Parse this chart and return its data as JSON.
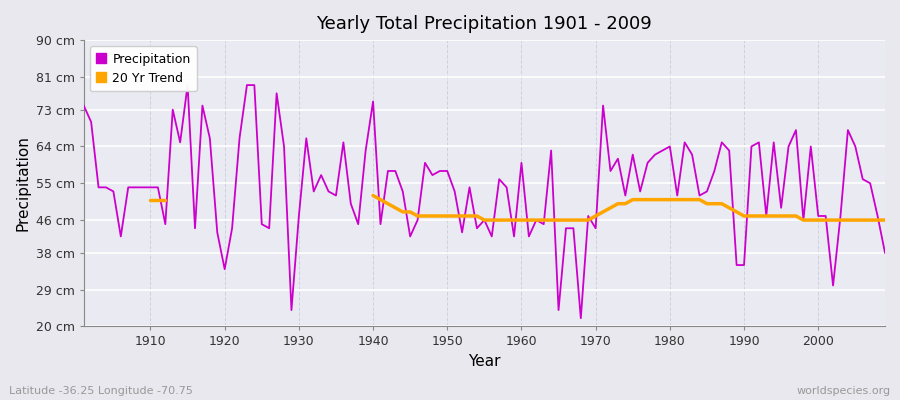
{
  "title": "Yearly Total Precipitation 1901 - 2009",
  "xlabel": "Year",
  "ylabel": "Precipitation",
  "lat_lon_label": "Latitude -36.25 Longitude -70.75",
  "source_label": "worldspecies.org",
  "precip_color": "#cc00cc",
  "trend_color": "#ffa500",
  "fig_bg_color": "#e8e8ee",
  "plot_bg_color": "#eaeaf2",
  "grid_color_h": "#ffffff",
  "grid_color_v": "#d0d0e0",
  "ylim": [
    20,
    90
  ],
  "xlim": [
    1901,
    2009
  ],
  "ytick_vals": [
    20,
    29,
    38,
    46,
    55,
    64,
    73,
    81,
    90
  ],
  "ytick_labels": [
    "20 cm",
    "29 cm",
    "38 cm",
    "46 cm",
    "55 cm",
    "64 cm",
    "73 cm",
    "81 cm",
    "90 cm"
  ],
  "xtick_vals": [
    1910,
    1920,
    1930,
    1940,
    1950,
    1960,
    1970,
    1980,
    1990,
    2000
  ],
  "years": [
    1901,
    1902,
    1903,
    1904,
    1905,
    1906,
    1907,
    1908,
    1909,
    1910,
    1911,
    1912,
    1913,
    1914,
    1915,
    1916,
    1917,
    1918,
    1919,
    1920,
    1921,
    1922,
    1923,
    1924,
    1925,
    1926,
    1927,
    1928,
    1929,
    1930,
    1931,
    1932,
    1933,
    1934,
    1935,
    1936,
    1937,
    1938,
    1939,
    1940,
    1941,
    1942,
    1943,
    1944,
    1945,
    1946,
    1947,
    1948,
    1949,
    1950,
    1951,
    1952,
    1953,
    1954,
    1955,
    1956,
    1957,
    1958,
    1959,
    1960,
    1961,
    1962,
    1963,
    1964,
    1965,
    1966,
    1967,
    1968,
    1969,
    1970,
    1971,
    1972,
    1973,
    1974,
    1975,
    1976,
    1977,
    1978,
    1979,
    1980,
    1981,
    1982,
    1983,
    1984,
    1985,
    1986,
    1987,
    1988,
    1989,
    1990,
    1991,
    1992,
    1993,
    1994,
    1995,
    1996,
    1997,
    1998,
    1999,
    2000,
    2001,
    2002,
    2003,
    2004,
    2005,
    2006,
    2007,
    2008,
    2009
  ],
  "precip": [
    74,
    70,
    54,
    54,
    53,
    42,
    54,
    54,
    54,
    54,
    54,
    45,
    73,
    65,
    79,
    44,
    74,
    66,
    43,
    34,
    44,
    66,
    79,
    79,
    45,
    44,
    77,
    64,
    24,
    47,
    66,
    53,
    57,
    53,
    52,
    65,
    50,
    45,
    63,
    75,
    45,
    58,
    58,
    53,
    42,
    46,
    60,
    57,
    58,
    58,
    53,
    43,
    54,
    44,
    46,
    42,
    56,
    54,
    42,
    60,
    42,
    46,
    45,
    63,
    24,
    44,
    44,
    22,
    47,
    44,
    74,
    58,
    61,
    52,
    62,
    53,
    60,
    62,
    63,
    64,
    52,
    65,
    62,
    52,
    53,
    58,
    65,
    63,
    35,
    35,
    64,
    65,
    47,
    65,
    49,
    64,
    68,
    46,
    64,
    47,
    47,
    30,
    47,
    68,
    64,
    56,
    55,
    47,
    38
  ],
  "trend_years": [
    1910,
    1912,
    1940,
    1941,
    1942,
    1943,
    1944,
    1945,
    1946,
    1947,
    1948,
    1949,
    1950,
    1951,
    1952,
    1953,
    1954,
    1955,
    1956,
    1957,
    1958,
    1959,
    1960,
    1961,
    1962,
    1963,
    1964,
    1965,
    1966,
    1967,
    1968,
    1969,
    1970,
    1971,
    1972,
    1973,
    1974,
    1975,
    1976,
    1977,
    1978,
    1979,
    1980,
    1981,
    1982,
    1983,
    1984,
    1985,
    1986,
    1987,
    1988,
    1989,
    1990,
    1991,
    1992,
    1993,
    1994,
    1995,
    1996,
    1997,
    1998,
    1999,
    2000,
    2001,
    2002,
    2003,
    2004,
    2005,
    2006,
    2007,
    2008,
    2009
  ],
  "trend_vals": [
    51,
    51,
    52,
    51,
    50,
    49,
    48,
    48,
    47,
    47,
    47,
    47,
    47,
    47,
    47,
    47,
    47,
    46,
    46,
    46,
    46,
    46,
    46,
    46,
    46,
    46,
    46,
    46,
    46,
    46,
    46,
    46,
    47,
    48,
    49,
    50,
    50,
    51,
    51,
    51,
    51,
    51,
    51,
    51,
    51,
    51,
    51,
    50,
    50,
    50,
    49,
    48,
    47,
    47,
    47,
    47,
    47,
    47,
    47,
    47,
    46,
    46,
    46,
    46,
    46,
    46,
    46,
    46,
    46,
    46,
    46,
    46
  ],
  "legend_labels": [
    "Precipitation",
    "20 Yr Trend"
  ]
}
